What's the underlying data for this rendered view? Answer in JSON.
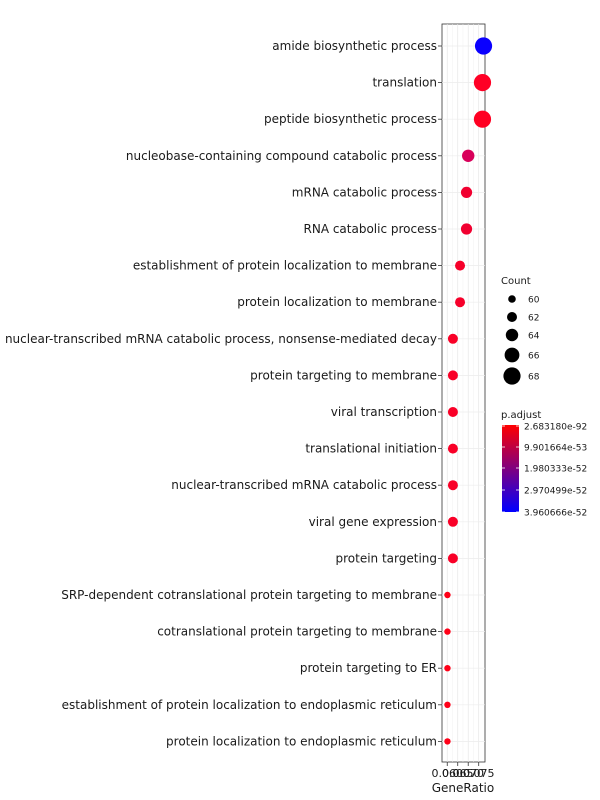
{
  "chart_data": {
    "type": "scatter",
    "title": "",
    "xlabel": "GeneRatio",
    "ylabel": "",
    "x_tick_labels": [
      "0.060",
      "0.065",
      "0.070",
      "0.075"
    ],
    "x_ticks": [
      0.06,
      0.065,
      0.07,
      0.075
    ],
    "xlim": [
      0.0575,
      0.078
    ],
    "grid": true,
    "legend_placement": "right",
    "categories": [
      "amide biosynthetic process",
      "translation",
      "peptide biosynthetic process",
      "nucleobase-containing compound catabolic process",
      "mRNA catabolic process",
      "RNA catabolic process",
      "establishment of protein localization to membrane",
      "protein localization to membrane",
      "nuclear-transcribed mRNA catabolic process, nonsense-mediated decay",
      "protein targeting to membrane",
      "viral transcription",
      "translational initiation",
      "nuclear-transcribed mRNA catabolic process",
      "viral gene expression",
      "protein targeting",
      "SRP-dependent cotranslational protein targeting to membrane",
      "cotranslational protein targeting to membrane",
      "protein targeting to ER",
      "establishment of protein localization to endoplasmic reticulum",
      "protein localization to endoplasmic reticulum"
    ],
    "gene_ratio": [
      0.0773,
      0.0768,
      0.0768,
      0.07,
      0.0692,
      0.0692,
      0.0661,
      0.0661,
      0.0627,
      0.0627,
      0.0627,
      0.0627,
      0.0627,
      0.0627,
      0.0627,
      0.0601,
      0.0601,
      0.0601,
      0.0601,
      0.0601
    ],
    "count": [
      68,
      68,
      68,
      64,
      63,
      63,
      62,
      62,
      62,
      62,
      62,
      62,
      62,
      62,
      62,
      59,
      59,
      59,
      59,
      59
    ],
    "color_values": [
      "#0a00ff",
      "#ff0025",
      "#ff0022",
      "#d8005a",
      "#f10030",
      "#f10030",
      "#f6002a",
      "#f6002a",
      "#f90027",
      "#f90027",
      "#f90027",
      "#f90027",
      "#f90027",
      "#f90027",
      "#f90027",
      "#ff0018",
      "#ff0018",
      "#ff0018",
      "#ff0018",
      "#ff0018"
    ],
    "size_legend": {
      "title": "Count",
      "values": [
        "60",
        "62",
        "64",
        "66",
        "68"
      ]
    },
    "color_legend": {
      "title": "p.adjust",
      "labels": [
        "2.683180e-92",
        "9.901664e-53",
        "1.980333e-52",
        "2.970499e-52",
        "3.960666e-52"
      ],
      "gradient": [
        "#ff0000",
        "#0000ff"
      ]
    }
  }
}
